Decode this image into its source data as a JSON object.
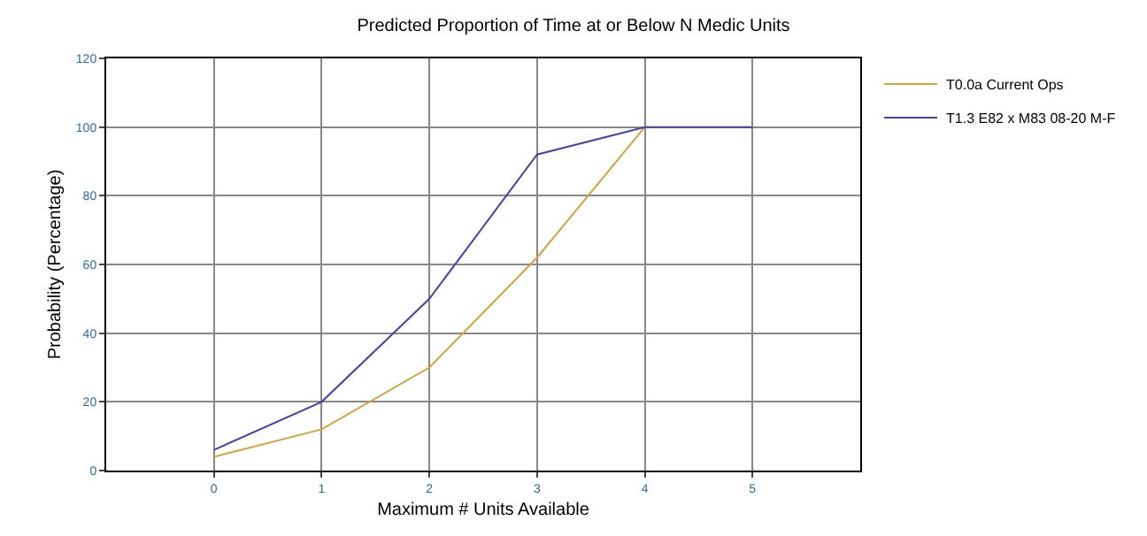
{
  "chart_data": {
    "type": "line",
    "title": "Predicted Proportion of Time at or Below N Medic Units",
    "xlabel": "Maximum # Units Available",
    "ylabel": "Probability (Percentage)",
    "x": [
      0,
      1,
      2,
      3,
      4,
      5
    ],
    "series": [
      {
        "name": "T0.0a Current Ops",
        "color": "#d4a23a",
        "values": [
          4,
          12,
          30,
          62,
          100,
          null
        ]
      },
      {
        "name": "T1.3 E82 x M83 08-20 M-F",
        "color": "#4a3fb0",
        "values": [
          6,
          20,
          50,
          92,
          100,
          100
        ]
      }
    ],
    "xlim": [
      -1,
      6
    ],
    "xticks": [
      0,
      1,
      2,
      3,
      4,
      5
    ],
    "ylim": [
      0,
      120
    ],
    "yticks": [
      0,
      20,
      40,
      60,
      80,
      100,
      120
    ],
    "grid": true,
    "legend": "top right",
    "marker": "none",
    "line_style": "solid"
  }
}
